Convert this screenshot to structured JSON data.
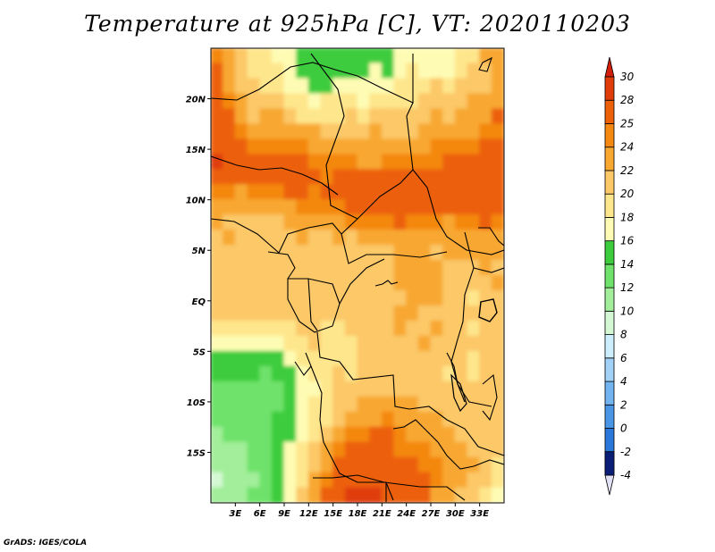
{
  "title": "Temperature at 925hPa [C], VT: 2020110203",
  "credit": "GrADS: IGES/COLA",
  "map": {
    "lon_range": [
      0,
      36
    ],
    "lat_range": [
      -20,
      25
    ],
    "lon_ticks": [
      {
        "value": 3,
        "label": "3E"
      },
      {
        "value": 6,
        "label": "6E"
      },
      {
        "value": 9,
        "label": "9E"
      },
      {
        "value": 12,
        "label": "12E"
      },
      {
        "value": 15,
        "label": "15E"
      },
      {
        "value": 18,
        "label": "18E"
      },
      {
        "value": 21,
        "label": "21E"
      },
      {
        "value": 24,
        "label": "24E"
      },
      {
        "value": 27,
        "label": "27E"
      },
      {
        "value": 30,
        "label": "30E"
      },
      {
        "value": 33,
        "label": "33E"
      }
    ],
    "lat_ticks": [
      {
        "value": 20,
        "label": "20N"
      },
      {
        "value": 15,
        "label": "15N"
      },
      {
        "value": 10,
        "label": "10N"
      },
      {
        "value": 5,
        "label": "5N"
      },
      {
        "value": 0,
        "label": "EQ"
      },
      {
        "value": -5,
        "label": "5S"
      },
      {
        "value": -10,
        "label": "10S"
      },
      {
        "value": -15,
        "label": "15S"
      }
    ]
  },
  "colorbar": {
    "colors": [
      "#0a1e78",
      "#1450c8",
      "#2a78dc",
      "#4a96e6",
      "#72b4f0",
      "#a2d2f8",
      "#cdeefc",
      "#d4f8d4",
      "#a2ee9a",
      "#6ee26a",
      "#3ccc3c",
      "#fefcb4",
      "#fee68c",
      "#fcc868",
      "#f8a830",
      "#f48810",
      "#ec6008",
      "#e03c0a"
    ],
    "labels": [
      "-4",
      "-2",
      "0",
      "2",
      "4",
      "6",
      "8",
      "10",
      "12",
      "14",
      "16",
      "18",
      "20",
      "22",
      "24",
      "25",
      "28",
      "30"
    ],
    "below_color": "#e2e2f6",
    "above_color": "#d21e0a"
  },
  "chart_data": {
    "type": "heatmap",
    "title": "Temperature at 925hPa [C], VT: 2020110203",
    "variable": "Temperature at 925hPa",
    "units": "C",
    "valid_time": "2020110203",
    "xlim": [
      0,
      36
    ],
    "ylim": [
      -20,
      25
    ],
    "contour_levels": [
      -4,
      -2,
      0,
      2,
      4,
      6,
      8,
      10,
      12,
      14,
      16,
      18,
      20,
      22,
      24,
      25,
      28,
      30
    ],
    "grid_step_deg": 1.5,
    "approx_temperature_field": {
      "lats": [
        24.25,
        22.75,
        21.25,
        19.75,
        18.25,
        16.75,
        15.25,
        13.75,
        12.25,
        10.75,
        9.25,
        7.75,
        6.25,
        4.75,
        3.25,
        1.75,
        0.25,
        -1.25,
        -2.75,
        -4.25,
        -5.75,
        -7.25,
        -8.75,
        -10.25,
        -11.75,
        -13.25,
        -14.75,
        -16.25,
        -17.75,
        -19.25
      ],
      "lons": [
        0.75,
        2.25,
        3.75,
        5.25,
        6.75,
        8.25,
        9.75,
        11.25,
        12.75,
        14.25,
        15.75,
        17.25,
        18.75,
        20.25,
        21.75,
        23.25,
        24.75,
        26.25,
        27.75,
        29.25,
        30.75,
        32.25,
        33.75,
        35.25
      ],
      "values": [
        [
          24.8,
          22.4,
          20.4,
          18.4,
          18.1,
          16.9,
          16.6,
          15.1,
          14.2,
          15.9,
          14.8,
          15.0,
          15.1,
          15.7,
          14.6,
          16.7,
          17.8,
          16.4,
          17.0,
          16.8,
          18.8,
          18.7,
          22.8,
          23.9
        ],
        [
          25.1,
          23.1,
          21.8,
          18.8,
          18.3,
          18.4,
          16.7,
          15.4,
          14.1,
          15.1,
          14.2,
          14.5,
          14.5,
          16.4,
          14.7,
          16.4,
          18.4,
          16.5,
          16.0,
          17.5,
          19.5,
          20.3,
          21.6,
          23.0
        ],
        [
          25.3,
          23.0,
          21.4,
          20.8,
          19.7,
          19.7,
          17.8,
          17.1,
          15.5,
          15.4,
          16.3,
          16.3,
          16.5,
          17.1,
          16.7,
          18.0,
          18.6,
          18.4,
          20.1,
          19.6,
          20.1,
          21.7,
          21.6,
          23.4
        ],
        [
          25.5,
          24.8,
          22.3,
          21.6,
          20.4,
          20.7,
          19.9,
          18.7,
          16.6,
          18.5,
          18.0,
          18.2,
          17.8,
          18.5,
          18.5,
          18.4,
          19.7,
          20.5,
          20.2,
          20.3,
          21.9,
          22.1,
          22.9,
          23.3
        ],
        [
          26.3,
          25.8,
          23.5,
          21.9,
          22.0,
          22.0,
          21.0,
          19.8,
          19.9,
          19.2,
          19.7,
          20.9,
          19.6,
          20.4,
          20.8,
          20.0,
          20.8,
          20.3,
          22.4,
          21.6,
          22.5,
          23.6,
          22.3,
          25.2
        ],
        [
          27.1,
          25.5,
          24.9,
          23.3,
          23.2,
          23.0,
          23.5,
          22.3,
          22.2,
          21.2,
          21.1,
          21.3,
          21.5,
          22.0,
          21.5,
          21.1,
          21.4,
          22.9,
          22.8,
          23.8,
          23.2,
          23.6,
          24.3,
          24.2
        ],
        [
          27.5,
          26.7,
          25.8,
          24.5,
          24.3,
          24.6,
          24.9,
          24.2,
          23.8,
          23.6,
          23.1,
          23.1,
          22.5,
          22.5,
          23.0,
          23.3,
          23.4,
          22.5,
          24.5,
          24.2,
          24.6,
          24.3,
          26.1,
          25.3
        ],
        [
          28.2,
          27.9,
          27.0,
          26.2,
          26.1,
          25.5,
          25.7,
          25.2,
          24.9,
          24.6,
          24.7,
          24.8,
          23.8,
          23.7,
          24.4,
          24.7,
          24.9,
          24.3,
          24.7,
          25.0,
          26.5,
          25.5,
          25.3,
          27.5
        ],
        [
          27.4,
          26.9,
          26.2,
          26.6,
          26.0,
          26.8,
          26.1,
          26.0,
          25.0,
          24.5,
          25.6,
          25.9,
          25.5,
          25.9,
          25.4,
          25.9,
          25.1,
          25.6,
          25.9,
          25.5,
          26.4,
          26.3,
          27.2,
          27.5
        ],
        [
          24.5,
          24.0,
          23.4,
          24.2,
          24.7,
          24.5,
          25.1,
          25.0,
          24.3,
          25.2,
          25.8,
          25.7,
          26.7,
          26.1,
          26.6,
          26.0,
          26.0,
          25.9,
          26.1,
          26.0,
          26.6,
          26.2,
          26.6,
          26.1
        ],
        [
          22.5,
          22.5,
          22.5,
          22.3,
          22.3,
          22.8,
          22.9,
          24.4,
          24.0,
          24.1,
          24.5,
          25.4,
          25.9,
          25.0,
          26.1,
          25.9,
          26.3,
          25.2,
          25.9,
          25.2,
          25.9,
          26.1,
          25.6,
          25.7
        ],
        [
          22.8,
          21.3,
          20.9,
          21.0,
          20.8,
          21.3,
          22.1,
          22.3,
          22.4,
          22.6,
          23.4,
          24.3,
          24.4,
          24.4,
          24.1,
          25.2,
          24.3,
          24.8,
          24.1,
          23.7,
          24.3,
          24.9,
          25.3,
          24.3
        ],
        [
          21.1,
          22.3,
          21.0,
          20.9,
          21.0,
          21.1,
          20.6,
          22.0,
          21.2,
          21.4,
          22.1,
          21.3,
          22.8,
          22.8,
          23.1,
          23.3,
          23.3,
          23.4,
          22.5,
          23.4,
          22.6,
          23.1,
          23.3,
          22.9
        ],
        [
          21.4,
          20.6,
          20.5,
          20.8,
          20.3,
          21.2,
          20.9,
          21.4,
          21.0,
          21.1,
          21.1,
          21.1,
          20.6,
          21.5,
          21.7,
          22.8,
          23.6,
          22.6,
          21.8,
          22.7,
          22.4,
          22.0,
          22.3,
          23.1
        ],
        [
          20.3,
          20.3,
          20.9,
          20.6,
          20.7,
          20.6,
          20.5,
          20.1,
          21.0,
          21.3,
          21.2,
          21.1,
          21.1,
          21.0,
          21.7,
          22.3,
          23.0,
          23.2,
          22.5,
          21.3,
          21.7,
          21.1,
          22.2,
          21.6
        ],
        [
          20.3,
          20.4,
          20.5,
          20.4,
          21.0,
          20.6,
          20.7,
          21.1,
          20.8,
          20.7,
          21.0,
          21.2,
          21.1,
          21.1,
          21.6,
          22.3,
          22.3,
          22.9,
          22.7,
          21.3,
          20.0,
          20.5,
          20.4,
          22.4
        ],
        [
          20.8,
          20.8,
          20.8,
          21.0,
          21.0,
          21.1,
          21.3,
          21.0,
          20.4,
          20.9,
          20.6,
          20.7,
          20.9,
          21.4,
          21.5,
          21.4,
          22.3,
          22.2,
          22.4,
          21.8,
          20.5,
          19.8,
          20.4,
          21.6
        ],
        [
          20.5,
          20.3,
          20.4,
          20.3,
          20.2,
          20.5,
          20.6,
          20.6,
          20.6,
          20.2,
          20.6,
          20.5,
          21.2,
          21.5,
          21.4,
          22.4,
          22.2,
          21.9,
          21.7,
          21.6,
          21.2,
          20.3,
          20.7,
          21.8
        ],
        [
          19.7,
          19.4,
          19.2,
          18.9,
          18.8,
          19.0,
          19.5,
          20.1,
          20.2,
          19.8,
          19.6,
          20.8,
          21.2,
          20.9,
          21.1,
          22.2,
          21.9,
          21.6,
          22.5,
          21.2,
          20.5,
          19.6,
          20.0,
          20.8
        ],
        [
          17.2,
          16.4,
          16.2,
          16.6,
          16.3,
          17.0,
          18.0,
          19.8,
          20.1,
          19.1,
          19.7,
          19.8,
          20.3,
          21.1,
          21.3,
          21.3,
          20.9,
          22.0,
          21.7,
          21.5,
          20.4,
          20.1,
          20.3,
          20.3
        ],
        [
          15.6,
          15.1,
          15.1,
          15.5,
          15.6,
          15.8,
          16.6,
          18.0,
          19.2,
          19.7,
          19.5,
          19.8,
          20.5,
          21.1,
          21.1,
          21.1,
          21.5,
          21.5,
          21.7,
          20.4,
          20.0,
          19.9,
          20.1,
          20.5
        ],
        [
          14.5,
          14.0,
          14.4,
          14.1,
          13.9,
          14.5,
          15.4,
          16.8,
          18.8,
          19.5,
          20.1,
          19.9,
          20.4,
          20.9,
          21.5,
          21.5,
          21.2,
          20.8,
          20.5,
          19.5,
          20.8,
          19.8,
          20.0,
          20.1
        ],
        [
          12.7,
          13.3,
          13.4,
          13.6,
          13.6,
          13.9,
          15.0,
          16.5,
          17.7,
          18.4,
          20.2,
          20.3,
          20.5,
          21.1,
          21.5,
          21.5,
          21.3,
          21.3,
          20.8,
          20.6,
          20.7,
          20.5,
          20.2,
          20.0
        ],
        [
          12.8,
          13.1,
          13.7,
          13.4,
          13.8,
          13.2,
          14.2,
          16.2,
          18.0,
          19.1,
          20.4,
          21.2,
          22.3,
          23.1,
          22.8,
          22.8,
          22.5,
          21.8,
          21.7,
          21.5,
          21.3,
          20.7,
          20.8,
          21.0
        ],
        [
          12.0,
          12.8,
          13.5,
          13.0,
          13.6,
          14.2,
          14.4,
          16.8,
          18.3,
          19.8,
          21.6,
          22.5,
          23.6,
          23.9,
          24.4,
          23.6,
          23.2,
          22.9,
          22.4,
          21.8,
          21.1,
          21.3,
          20.4,
          20.4
        ],
        [
          11.4,
          12.2,
          12.6,
          12.8,
          13.2,
          14.2,
          15.7,
          17.7,
          19.0,
          20.9,
          22.7,
          24.1,
          24.5,
          25.4,
          25.1,
          24.2,
          23.5,
          23.8,
          23.1,
          22.3,
          21.4,
          21.1,
          21.1,
          21.0
        ],
        [
          10.0,
          11.0,
          11.6,
          12.5,
          13.6,
          14.5,
          16.0,
          18.9,
          20.3,
          22.4,
          24.1,
          25.7,
          26.2,
          25.8,
          25.5,
          24.9,
          24.4,
          24.6,
          23.9,
          22.7,
          22.0,
          21.9,
          20.8,
          20.3
        ],
        [
          10.0,
          11.0,
          11.4,
          12.1,
          13.0,
          14.6,
          16.3,
          19.2,
          20.8,
          23.5,
          25.8,
          26.7,
          27.2,
          26.6,
          25.7,
          25.5,
          25.1,
          24.7,
          24.4,
          23.6,
          22.5,
          22.0,
          20.2,
          19.3
        ],
        [
          9.9,
          10.9,
          11.9,
          11.7,
          13.1,
          14.2,
          16.9,
          19.9,
          22.0,
          24.9,
          26.9,
          27.5,
          27.9,
          27.3,
          26.7,
          26.1,
          25.6,
          25.3,
          24.4,
          23.3,
          22.7,
          21.0,
          20.1,
          18.1
        ],
        [
          10.6,
          10.5,
          11.6,
          12.3,
          12.9,
          14.9,
          17.0,
          20.2,
          22.6,
          25.9,
          27.5,
          28.5,
          28.4,
          28.0,
          27.4,
          26.7,
          25.4,
          25.1,
          23.9,
          23.1,
          21.7,
          21.0,
          18.7,
          17.1
        ]
      ]
    },
    "colorbar_labels": [
      "-4",
      "-2",
      "0",
      "2",
      "4",
      "6",
      "8",
      "10",
      "12",
      "14",
      "16",
      "18",
      "20",
      "22",
      "24",
      "25",
      "28",
      "30"
    ],
    "xlabel": "",
    "ylabel": ""
  }
}
